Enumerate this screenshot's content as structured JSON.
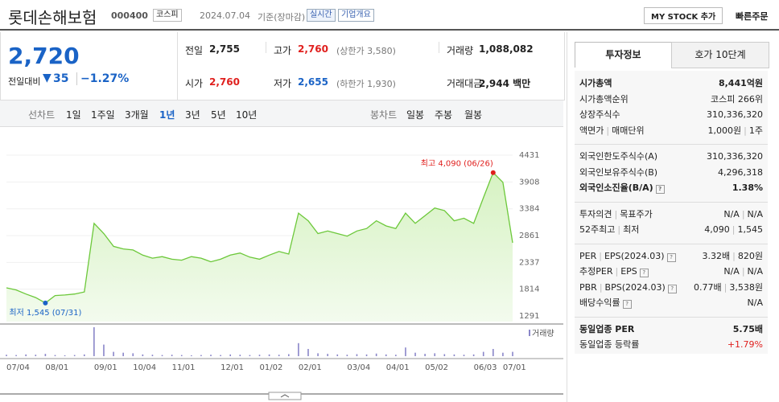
{
  "header": {
    "name": "롯데손해보험",
    "code": "000400",
    "market": "코스피",
    "date": "2024.07.04",
    "basis": "기준(장마감)",
    "realtime": "실시간",
    "company": "기업개요",
    "my_stock": "MY STOCK 추가",
    "quick_order": "빠른주문"
  },
  "price": {
    "current": "2,720",
    "change_label": "전일대비",
    "change": "35",
    "rate": "−1.27%"
  },
  "summary": [
    [
      {
        "label": "전일",
        "value": "2,755"
      },
      {
        "label": "고가",
        "value": "2,760",
        "extra": "(상한가 3,580)"
      },
      {
        "label": "거래량",
        "value": "1,088,082"
      }
    ],
    [
      {
        "label": "시가",
        "value": "2,760"
      },
      {
        "label": "저가",
        "value": "2,655",
        "extra": "(하한가 1,930)"
      },
      {
        "label": "거래대금",
        "value": "2,944 백만"
      }
    ]
  ],
  "tabs": {
    "line_chart": "선차트",
    "periods": [
      "1일",
      "1주일",
      "3개월",
      "1년",
      "3년",
      "5년",
      "10년"
    ],
    "candle_chart": "봉차트",
    "candles": [
      "일봉",
      "주봉",
      "월봉"
    ]
  },
  "side": {
    "tabs": [
      "투자정보",
      "호가 10단계"
    ],
    "groups": [
      [
        {
          "label": [
            "시가총액"
          ],
          "value": [
            "8,441억원"
          ],
          "bold": true
        },
        {
          "label": [
            "시가총액순위"
          ],
          "value": [
            "코스피 266위"
          ]
        },
        {
          "label": [
            "상장주식수"
          ],
          "value": [
            "310,336,320"
          ]
        },
        {
          "label": [
            "액면가",
            "매매단위"
          ],
          "value": [
            "1,000원",
            "1주"
          ]
        }
      ],
      [
        {
          "label": [
            "외국인한도주식수(A)"
          ],
          "value": [
            "310,336,320"
          ]
        },
        {
          "label": [
            "외국인보유주식수(B)"
          ],
          "value": [
            "4,296,318"
          ]
        },
        {
          "label": [
            "외국인소진율(B/A)"
          ],
          "value": [
            "1.38%"
          ],
          "bold": true,
          "help": true
        }
      ],
      [
        {
          "label": [
            "투자의견",
            "목표주가"
          ],
          "value": [
            "N/A",
            "N/A"
          ]
        },
        {
          "label": [
            "52주최고",
            "최저"
          ],
          "value": [
            "4,090",
            "1,545"
          ]
        }
      ],
      [
        {
          "label": [
            "PER",
            "EPS(2024.03)"
          ],
          "value": [
            "3.32배",
            "820원"
          ],
          "help": true
        },
        {
          "label": [
            "추정PER",
            "EPS"
          ],
          "value": [
            "N/A",
            "N/A"
          ],
          "help": true
        },
        {
          "label": [
            "PBR",
            "BPS(2024.03)"
          ],
          "value": [
            "0.77배",
            "3,538원"
          ],
          "help": true
        },
        {
          "label": [
            "배당수익률"
          ],
          "value": [
            "N/A"
          ],
          "help": true
        }
      ],
      [
        {
          "label": [
            "동일업종 PER"
          ],
          "value": [
            "5.75배"
          ],
          "bold": true
        },
        {
          "label": [
            "동일업종 등락률"
          ],
          "value": [
            "+1.79%"
          ],
          "red": true
        }
      ]
    ]
  },
  "chart_data": [
    {
      "type": "area",
      "color": "#6cc83a",
      "fill": "#e6f7d9",
      "categories": [
        "07/04",
        null,
        null,
        null,
        "08/01",
        null,
        null,
        null,
        null,
        "09/01",
        null,
        null,
        null,
        "10/04",
        null,
        null,
        null,
        "11/01",
        null,
        null,
        null,
        null,
        "12/01",
        null,
        null,
        null,
        "01/02",
        null,
        null,
        null,
        "02/01",
        null,
        null,
        null,
        null,
        "03/04",
        null,
        null,
        null,
        "04/01",
        null,
        null,
        null,
        "05/02",
        null,
        null,
        null,
        null,
        "06/03",
        null,
        null,
        "07/01",
        null
      ],
      "values": [
        1840,
        1800,
        1720,
        1650,
        1545,
        1690,
        1700,
        1720,
        1760,
        3100,
        2900,
        2650,
        2600,
        2580,
        2480,
        2420,
        2450,
        2400,
        2380,
        2450,
        2420,
        2350,
        2400,
        2480,
        2520,
        2440,
        2400,
        2480,
        2550,
        2500,
        3300,
        3150,
        2900,
        2950,
        2900,
        2850,
        2950,
        3000,
        3150,
        3050,
        3000,
        3300,
        3100,
        3250,
        3400,
        3350,
        3150,
        3200,
        3100,
        3600,
        4090,
        3900,
        2720
      ],
      "max_label": "최고 4,090 (06/26)",
      "min_label": "최저 1,545 (07/31)",
      "ylim": [
        1181,
        4871
      ],
      "yticks": [
        1291,
        1814,
        2337,
        2861,
        3384,
        3908,
        4431
      ],
      "grid": true
    },
    {
      "type": "bar",
      "name": "거래량",
      "color": "#8a86c9",
      "ylim": [
        0,
        100
      ],
      "values": [
        5,
        4,
        6,
        5,
        8,
        4,
        3,
        4,
        6,
        100,
        40,
        15,
        12,
        10,
        6,
        5,
        4,
        5,
        4,
        3,
        4,
        5,
        4,
        6,
        5,
        4,
        5,
        6,
        5,
        7,
        45,
        25,
        10,
        8,
        6,
        5,
        7,
        6,
        9,
        6,
        5,
        30,
        12,
        8,
        10,
        7,
        6,
        5,
        6,
        15,
        25,
        12,
        15
      ]
    }
  ]
}
